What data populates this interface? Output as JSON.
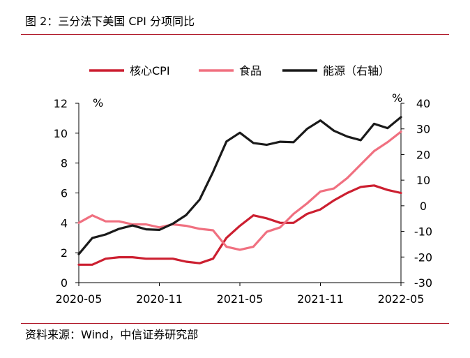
{
  "header": {
    "title": "图 2：三分法下美国 CPI 分项同比"
  },
  "footer": {
    "source": "资料来源：Wind，中信证券研究部"
  },
  "chart_data": {
    "type": "line",
    "legend_position": "top",
    "x": [
      "2020-05",
      "2020-06",
      "2020-07",
      "2020-08",
      "2020-09",
      "2020-10",
      "2020-11",
      "2020-12",
      "2021-01",
      "2021-02",
      "2021-03",
      "2021-04",
      "2021-05",
      "2021-06",
      "2021-07",
      "2021-08",
      "2021-09",
      "2021-10",
      "2021-11",
      "2021-12",
      "2022-01",
      "2022-02",
      "2022-03",
      "2022-04",
      "2022-05"
    ],
    "xticks": [
      "2020-05",
      "2020-11",
      "2021-05",
      "2021-11",
      "2022-05"
    ],
    "y_left": {
      "unit": "%",
      "range": [
        0,
        12
      ],
      "ticks": [
        "0",
        "2",
        "4",
        "6",
        "8",
        "10",
        "12"
      ]
    },
    "y_right": {
      "unit": "%",
      "range": [
        -30,
        40
      ],
      "ticks": [
        "-30",
        "-20",
        "-10",
        "0",
        "10",
        "20",
        "30",
        "40"
      ]
    },
    "series": [
      {
        "name": "核心CPI",
        "axis": "left",
        "color": "#cc1f30",
        "values": [
          1.2,
          1.2,
          1.6,
          1.7,
          1.7,
          1.6,
          1.6,
          1.6,
          1.4,
          1.3,
          1.6,
          3.0,
          3.8,
          4.5,
          4.3,
          4.0,
          4.0,
          4.6,
          4.9,
          5.5,
          6.0,
          6.4,
          6.5,
          6.2,
          6.0
        ]
      },
      {
        "name": "食品",
        "axis": "left",
        "color": "#f07080",
        "values": [
          4.0,
          4.5,
          4.1,
          4.1,
          3.9,
          3.9,
          3.7,
          3.9,
          3.8,
          3.6,
          3.5,
          2.4,
          2.2,
          2.4,
          3.4,
          3.7,
          4.6,
          5.3,
          6.1,
          6.3,
          7.0,
          7.9,
          8.8,
          9.4,
          10.1
        ]
      },
      {
        "name": "能源（右轴）",
        "axis": "right",
        "color": "#1a1a1a",
        "values": [
          -18.9,
          -12.6,
          -11.2,
          -9.0,
          -7.7,
          -9.2,
          -9.4,
          -7.0,
          -3.6,
          2.4,
          13.2,
          25.1,
          28.5,
          24.5,
          23.8,
          25.0,
          24.8,
          30.0,
          33.3,
          29.3,
          27.0,
          25.6,
          32.0,
          30.3,
          34.6
        ]
      }
    ]
  }
}
